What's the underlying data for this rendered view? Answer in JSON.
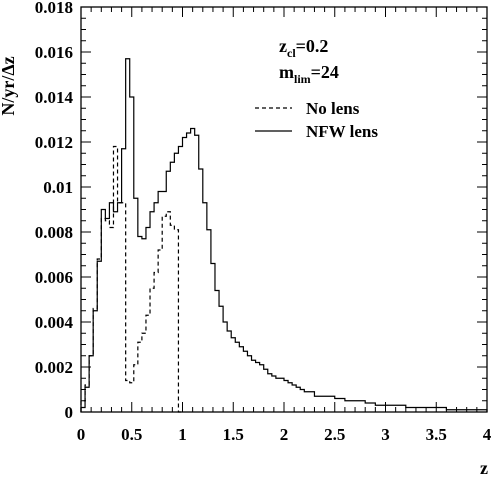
{
  "chart_data": {
    "type": "line",
    "title": "",
    "xlabel": "z",
    "ylabel": "N/yr/Δz",
    "xlim": [
      0,
      4
    ],
    "ylim": [
      0,
      0.018
    ],
    "x_ticks": [
      "0",
      "0.5",
      "1",
      "1.5",
      "2",
      "2.5",
      "3",
      "3.5",
      "4"
    ],
    "y_ticks": [
      "0",
      "0.002",
      "0.004",
      "0.006",
      "0.008",
      "0.01",
      "0.012",
      "0.014",
      "0.016",
      "0.018"
    ],
    "grid": false,
    "legend_position": "upper-right",
    "annotations": {
      "zcl_main": "z",
      "zcl_sub": "cl",
      "zcl_val": "=0.2",
      "mlim_main": "m",
      "mlim_sub": "lim",
      "mlim_val": "=24"
    },
    "series": [
      {
        "name": "No lens",
        "style": "dashed",
        "step": true,
        "x": [
          0.0,
          0.04,
          0.08,
          0.12,
          0.16,
          0.2,
          0.24,
          0.28,
          0.32,
          0.36,
          0.4,
          0.44,
          0.48,
          0.52,
          0.56,
          0.6,
          0.64,
          0.68,
          0.72,
          0.76,
          0.8,
          0.84,
          0.88,
          0.92,
          0.96
        ],
        "values": [
          0.0005,
          0.0012,
          0.0025,
          0.0046,
          0.0068,
          0.0086,
          0.0085,
          0.0082,
          0.0118,
          0.0093,
          0.0093,
          0.0014,
          0.0013,
          0.0021,
          0.0031,
          0.0035,
          0.0043,
          0.0055,
          0.0062,
          0.0072,
          0.0087,
          0.0089,
          0.0083,
          0.0081,
          0.0
        ]
      },
      {
        "name": "NFW lens",
        "style": "solid",
        "step": true,
        "x": [
          0.0,
          0.04,
          0.08,
          0.12,
          0.16,
          0.2,
          0.24,
          0.28,
          0.32,
          0.36,
          0.4,
          0.44,
          0.48,
          0.52,
          0.56,
          0.6,
          0.64,
          0.68,
          0.72,
          0.76,
          0.8,
          0.84,
          0.88,
          0.92,
          0.96,
          1.0,
          1.04,
          1.08,
          1.12,
          1.16,
          1.2,
          1.24,
          1.28,
          1.32,
          1.36,
          1.4,
          1.44,
          1.48,
          1.52,
          1.56,
          1.6,
          1.64,
          1.68,
          1.72,
          1.76,
          1.8,
          1.84,
          1.88,
          1.92,
          1.96,
          2.0,
          2.04,
          2.08,
          2.12,
          2.16,
          2.2,
          2.3,
          2.4,
          2.5,
          2.6,
          2.7,
          2.8,
          2.9,
          3.0,
          3.2,
          3.4,
          3.6,
          3.8,
          3.9
        ],
        "values": [
          0.0002,
          0.0011,
          0.0025,
          0.0045,
          0.0067,
          0.009,
          0.0086,
          0.0093,
          0.0089,
          0.0093,
          0.0117,
          0.0157,
          0.014,
          0.0095,
          0.0078,
          0.0077,
          0.0082,
          0.0089,
          0.0093,
          0.0098,
          0.0098,
          0.0107,
          0.0111,
          0.0115,
          0.0118,
          0.0122,
          0.0124,
          0.0126,
          0.0123,
          0.0108,
          0.0093,
          0.0081,
          0.0066,
          0.0054,
          0.0047,
          0.004,
          0.0036,
          0.0033,
          0.0031,
          0.0029,
          0.0027,
          0.0025,
          0.0023,
          0.0022,
          0.0021,
          0.0019,
          0.0017,
          0.0016,
          0.0015,
          0.0015,
          0.0014,
          0.0013,
          0.0012,
          0.0011,
          0.001,
          0.0009,
          0.0007,
          0.0007,
          0.0006,
          0.0005,
          0.0005,
          0.0004,
          0.0003,
          0.0003,
          0.0002,
          0.0002,
          0.0001,
          0.0001,
          0.0001
        ]
      }
    ]
  }
}
